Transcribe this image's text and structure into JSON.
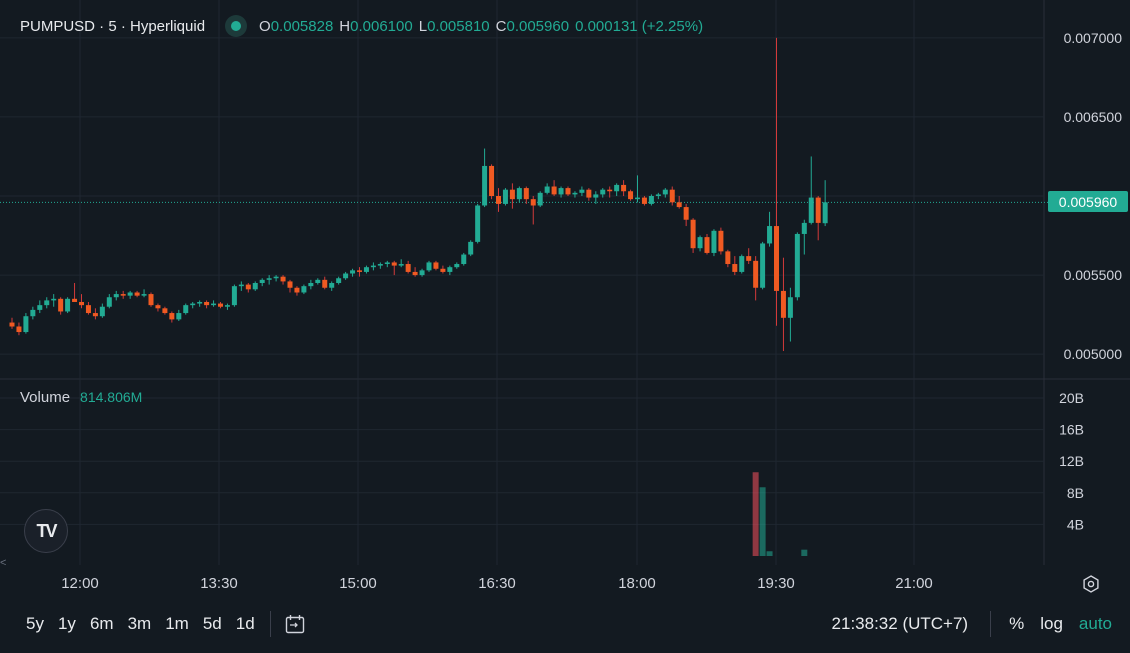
{
  "legend": {
    "symbol": "PUMPUSD · 5 · Hyperliquid",
    "open_key": "O",
    "open": "0.005828",
    "high_key": "H",
    "high": "0.006100",
    "low_key": "L",
    "low": "0.005810",
    "close_key": "C",
    "close": "0.005960",
    "change": "0.000131 (+2.25%)"
  },
  "volume_legend": {
    "label": "Volume",
    "value": "814.806M"
  },
  "last_price_badge": "0.005960",
  "icons": {
    "logo": "tradingview-logo-icon",
    "settings": "gear-icon",
    "date_range": "calendar-goto-icon",
    "scroll": "chevron-left-icon"
  },
  "colors": {
    "up": "#22ab94",
    "down": "#f7525f",
    "down_body": "#f05a22",
    "background": "#131a21",
    "grid": "#1f2731"
  },
  "bottom_bar": {
    "ranges": [
      "5y",
      "1y",
      "6m",
      "3m",
      "1m",
      "5d",
      "1d"
    ],
    "clock": "21:38:32 (UTC+7)",
    "percent_label": "%",
    "log_label": "log",
    "auto_label": "auto"
  },
  "chart_data": {
    "type": "candlestick",
    "price_axis_ticks": [
      "0.007000",
      "0.006500",
      "0.006000",
      "0.005500",
      "0.005000"
    ],
    "price_range": [
      0.0049,
      0.0071
    ],
    "volume_axis_ticks": [
      "20B",
      "16B",
      "12B",
      "8B",
      "4B"
    ],
    "volume_range": [
      0,
      20
    ],
    "time_axis_ticks": [
      "12:00",
      "13:30",
      "15:00",
      "16:30",
      "18:00",
      "19:30",
      "21:00"
    ],
    "last_price": 0.00596,
    "candles": [
      [
        0.0052,
        0.00523,
        0.00516,
        0.005175
      ],
      [
        0.005175,
        0.0052,
        0.00512,
        0.00514
      ],
      [
        0.00514,
        0.00526,
        0.00513,
        0.00524
      ],
      [
        0.00524,
        0.0053,
        0.00522,
        0.00528
      ],
      [
        0.00528,
        0.00534,
        0.00526,
        0.00531
      ],
      [
        0.00531,
        0.00536,
        0.00529,
        0.00534
      ],
      [
        0.00534,
        0.00538,
        0.0053,
        0.00535
      ],
      [
        0.00535,
        0.00536,
        0.00525,
        0.00527
      ],
      [
        0.00527,
        0.00536,
        0.00526,
        0.00535
      ],
      [
        0.00535,
        0.00545,
        0.00534,
        0.00533
      ],
      [
        0.00533,
        0.00538,
        0.00529,
        0.00531
      ],
      [
        0.00531,
        0.00533,
        0.00525,
        0.00526
      ],
      [
        0.00526,
        0.00529,
        0.00522,
        0.00524
      ],
      [
        0.00524,
        0.00532,
        0.00523,
        0.0053
      ],
      [
        0.0053,
        0.00538,
        0.00529,
        0.00536
      ],
      [
        0.00536,
        0.0054,
        0.00534,
        0.00538
      ],
      [
        0.00538,
        0.0054,
        0.00535,
        0.00537
      ],
      [
        0.00537,
        0.0054,
        0.00535,
        0.00539
      ],
      [
        0.00539,
        0.0054,
        0.00536,
        0.00537
      ],
      [
        0.00537,
        0.00541,
        0.00536,
        0.00538
      ],
      [
        0.00538,
        0.00539,
        0.0053,
        0.00531
      ],
      [
        0.00531,
        0.00532,
        0.00527,
        0.00529
      ],
      [
        0.00529,
        0.0053,
        0.00525,
        0.00526
      ],
      [
        0.00526,
        0.00527,
        0.0052,
        0.00522
      ],
      [
        0.00522,
        0.00528,
        0.00521,
        0.00526
      ],
      [
        0.00526,
        0.00532,
        0.00525,
        0.00531
      ],
      [
        0.00531,
        0.00533,
        0.00529,
        0.00532
      ],
      [
        0.00532,
        0.00534,
        0.0053,
        0.00533
      ],
      [
        0.00533,
        0.00534,
        0.00529,
        0.00531
      ],
      [
        0.00531,
        0.00534,
        0.0053,
        0.00532
      ],
      [
        0.00532,
        0.00533,
        0.00529,
        0.0053
      ],
      [
        0.0053,
        0.00532,
        0.00528,
        0.00531
      ],
      [
        0.00531,
        0.00544,
        0.0053,
        0.00543
      ],
      [
        0.00543,
        0.00546,
        0.0054,
        0.00544
      ],
      [
        0.00544,
        0.00545,
        0.00539,
        0.00541
      ],
      [
        0.00541,
        0.00546,
        0.0054,
        0.00545
      ],
      [
        0.00545,
        0.00548,
        0.00543,
        0.00547
      ],
      [
        0.00547,
        0.0055,
        0.00544,
        0.00548
      ],
      [
        0.00548,
        0.0055,
        0.00546,
        0.00549
      ],
      [
        0.00549,
        0.0055,
        0.00544,
        0.00546
      ],
      [
        0.00546,
        0.00547,
        0.00539,
        0.00542
      ],
      [
        0.00542,
        0.00543,
        0.00537,
        0.00539
      ],
      [
        0.00539,
        0.00544,
        0.00538,
        0.00543
      ],
      [
        0.00543,
        0.00547,
        0.00541,
        0.00545
      ],
      [
        0.00545,
        0.00548,
        0.00544,
        0.00547
      ],
      [
        0.00547,
        0.00549,
        0.00541,
        0.00542
      ],
      [
        0.00542,
        0.00546,
        0.0054,
        0.00545
      ],
      [
        0.00545,
        0.00549,
        0.00544,
        0.00548
      ],
      [
        0.00548,
        0.00552,
        0.00547,
        0.00551
      ],
      [
        0.00551,
        0.00554,
        0.00549,
        0.00553
      ],
      [
        0.00553,
        0.00555,
        0.00549,
        0.00552
      ],
      [
        0.00552,
        0.00556,
        0.00551,
        0.00555
      ],
      [
        0.00555,
        0.00558,
        0.00553,
        0.00556
      ],
      [
        0.00556,
        0.00558,
        0.00554,
        0.00557
      ],
      [
        0.00557,
        0.00559,
        0.00555,
        0.00558
      ],
      [
        0.00558,
        0.00559,
        0.0055,
        0.00556
      ],
      [
        0.00556,
        0.0056,
        0.00555,
        0.00557
      ],
      [
        0.00557,
        0.00559,
        0.00551,
        0.00552
      ],
      [
        0.00552,
        0.00555,
        0.00549,
        0.0055
      ],
      [
        0.0055,
        0.00554,
        0.00549,
        0.00553
      ],
      [
        0.00553,
        0.00559,
        0.00552,
        0.00558
      ],
      [
        0.00558,
        0.00559,
        0.00553,
        0.00554
      ],
      [
        0.00554,
        0.00556,
        0.00551,
        0.00552
      ],
      [
        0.00552,
        0.00556,
        0.0055,
        0.00555
      ],
      [
        0.00555,
        0.00558,
        0.00554,
        0.00557
      ],
      [
        0.00557,
        0.00564,
        0.00556,
        0.00563
      ],
      [
        0.00563,
        0.00572,
        0.00562,
        0.00571
      ],
      [
        0.00571,
        0.00595,
        0.0057,
        0.00594
      ],
      [
        0.00594,
        0.0063,
        0.00593,
        0.00619
      ],
      [
        0.00619,
        0.0062,
        0.00598,
        0.006
      ],
      [
        0.006,
        0.00605,
        0.0059,
        0.00595
      ],
      [
        0.00595,
        0.00605,
        0.00594,
        0.00604
      ],
      [
        0.00604,
        0.00608,
        0.00592,
        0.00598
      ],
      [
        0.00598,
        0.00606,
        0.00596,
        0.00605
      ],
      [
        0.00605,
        0.00606,
        0.00595,
        0.00598
      ],
      [
        0.00598,
        0.006,
        0.00582,
        0.00594
      ],
      [
        0.00594,
        0.00603,
        0.00593,
        0.00602
      ],
      [
        0.00602,
        0.00608,
        0.00601,
        0.00606
      ],
      [
        0.00606,
        0.0061,
        0.006,
        0.00601
      ],
      [
        0.00601,
        0.00606,
        0.00599,
        0.00605
      ],
      [
        0.00605,
        0.00606,
        0.006,
        0.00601
      ],
      [
        0.00601,
        0.00603,
        0.00599,
        0.00602
      ],
      [
        0.00602,
        0.00606,
        0.006,
        0.00604
      ],
      [
        0.00604,
        0.00605,
        0.00597,
        0.00599
      ],
      [
        0.00599,
        0.00603,
        0.00595,
        0.00601
      ],
      [
        0.00601,
        0.00605,
        0.00599,
        0.00604
      ],
      [
        0.00604,
        0.00606,
        0.00599,
        0.00603
      ],
      [
        0.00603,
        0.00608,
        0.006,
        0.00607
      ],
      [
        0.00607,
        0.0061,
        0.006,
        0.00603
      ],
      [
        0.00603,
        0.00604,
        0.00597,
        0.00598
      ],
      [
        0.00598,
        0.00613,
        0.00596,
        0.00599
      ],
      [
        0.00599,
        0.006,
        0.00594,
        0.00595
      ],
      [
        0.00595,
        0.00601,
        0.00594,
        0.006
      ],
      [
        0.006,
        0.00602,
        0.00598,
        0.00601
      ],
      [
        0.00601,
        0.00605,
        0.00599,
        0.00604
      ],
      [
        0.00604,
        0.00606,
        0.00594,
        0.00596
      ],
      [
        0.00596,
        0.006,
        0.00592,
        0.00593
      ],
      [
        0.00593,
        0.00595,
        0.00581,
        0.00585
      ],
      [
        0.00585,
        0.00586,
        0.00564,
        0.00567
      ],
      [
        0.00567,
        0.00575,
        0.00565,
        0.00574
      ],
      [
        0.00574,
        0.00576,
        0.00563,
        0.00564
      ],
      [
        0.00564,
        0.00579,
        0.00562,
        0.00578
      ],
      [
        0.00578,
        0.0058,
        0.00563,
        0.00565
      ],
      [
        0.00565,
        0.00566,
        0.00555,
        0.00557
      ],
      [
        0.00557,
        0.00562,
        0.0055,
        0.00552
      ],
      [
        0.00552,
        0.00563,
        0.00551,
        0.00562
      ],
      [
        0.00562,
        0.00567,
        0.00557,
        0.00559
      ],
      [
        0.00559,
        0.00562,
        0.00534,
        0.00542
      ],
      [
        0.00542,
        0.00571,
        0.00541,
        0.0057
      ],
      [
        0.0057,
        0.0059,
        0.00568,
        0.00581
      ],
      [
        0.00581,
        0.007,
        0.00518,
        0.0054
      ],
      [
        0.0054,
        0.00561,
        0.00502,
        0.00523
      ],
      [
        0.00523,
        0.00542,
        0.00508,
        0.00536
      ],
      [
        0.00536,
        0.00577,
        0.00534,
        0.00576
      ],
      [
        0.00576,
        0.00585,
        0.00563,
        0.00583
      ],
      [
        0.00583,
        0.00625,
        0.00582,
        0.00599
      ],
      [
        0.00599,
        0.006,
        0.00572,
        0.00583
      ],
      [
        0.005828,
        0.0061,
        0.00581,
        0.00596
      ]
    ],
    "volumes_B": [
      0.1,
      0.1,
      0.1,
      0.1,
      0.1,
      0.1,
      0.1,
      0.1,
      0.1,
      0.1,
      0.1,
      0.1,
      0.1,
      0.1,
      0.1,
      0.1,
      0.1,
      0.1,
      0.1,
      0.1,
      0.1,
      0.1,
      0.1,
      0.1,
      0.1,
      0.1,
      0.1,
      0.1,
      0.1,
      0.1,
      0.1,
      0.1,
      0.1,
      0.1,
      0.1,
      0.1,
      0.1,
      0.1,
      0.1,
      0.1,
      0.1,
      0.1,
      0.1,
      0.1,
      0.1,
      0.1,
      0.1,
      0.1,
      0.1,
      0.1,
      0.1,
      0.1,
      0.1,
      0.1,
      0.1,
      0.1,
      0.1,
      0.1,
      0.1,
      0.1,
      0.1,
      0.1,
      0.1,
      0.1,
      0.1,
      0.1,
      0.1,
      0.1,
      0.1,
      0.1,
      0.1,
      0.1,
      0.1,
      0.1,
      0.1,
      0.1,
      0.1,
      0.1,
      0.1,
      0.1,
      0.1,
      0.1,
      0.1,
      0.1,
      0.1,
      0.1,
      0.1,
      0.1,
      0.1,
      0.1,
      0.1,
      0.1,
      0.1,
      0.1,
      0.1,
      0.1,
      0.1,
      0.1,
      0.1,
      0.1,
      0.1,
      0.1,
      0.1,
      0.1,
      0.1,
      0.1,
      0.1,
      10.6,
      8.7,
      0.6,
      0.1,
      0.1,
      0.1,
      0.1,
      0.8
    ]
  }
}
